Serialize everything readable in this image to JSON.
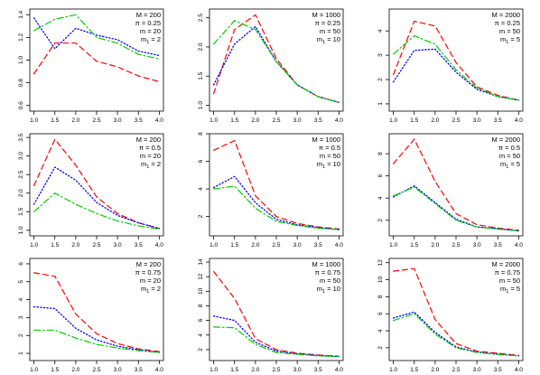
{
  "colors": {
    "red": "#ff0000",
    "blue": "#0000ff",
    "green": "#00cd00",
    "axis": "#000000"
  },
  "chart_data": [
    {
      "type": "line",
      "annotation": [
        "M = 200",
        "π = 0.25",
        "m = 20",
        "m1 = 2"
      ],
      "x": [
        1.0,
        1.5,
        2.0,
        2.5,
        3.0,
        3.5,
        4.0
      ],
      "ylim": [
        0.55,
        1.45
      ],
      "yticks": [
        0.6,
        0.8,
        1.0,
        1.2,
        1.4
      ],
      "series": [
        {
          "color": "red",
          "dash": "dashed",
          "values": [
            0.88,
            1.15,
            1.15,
            0.99,
            0.94,
            0.86,
            0.81
          ]
        },
        {
          "color": "blue",
          "dash": "dotted",
          "values": [
            1.37,
            1.1,
            1.28,
            1.22,
            1.18,
            1.08,
            1.04
          ]
        },
        {
          "color": "green",
          "dash": "dotdash",
          "values": [
            1.26,
            1.36,
            1.4,
            1.2,
            1.15,
            1.05,
            1.01
          ]
        }
      ]
    },
    {
      "type": "line",
      "annotation": [
        "M = 1000",
        "π = 0.25",
        "m = 50",
        "m1 = 10"
      ],
      "x": [
        1.0,
        1.5,
        2.0,
        2.5,
        3.0,
        3.5,
        4.0
      ],
      "ylim": [
        0.9,
        2.65
      ],
      "yticks": [
        1.0,
        1.5,
        2.0,
        2.5
      ],
      "series": [
        {
          "color": "red",
          "dash": "dashed",
          "values": [
            1.2,
            2.3,
            2.55,
            1.8,
            1.35,
            1.15,
            1.05
          ]
        },
        {
          "color": "blue",
          "dash": "dotted",
          "values": [
            1.35,
            2.05,
            2.35,
            1.75,
            1.35,
            1.15,
            1.05
          ]
        },
        {
          "color": "green",
          "dash": "dotdash",
          "values": [
            2.05,
            2.45,
            2.3,
            1.75,
            1.35,
            1.15,
            1.05
          ]
        }
      ]
    },
    {
      "type": "line",
      "annotation": [
        "M = 2000",
        "π = 0.25",
        "m = 50",
        "m1 = 5"
      ],
      "x": [
        1.0,
        1.5,
        2.0,
        2.5,
        3.0,
        3.5,
        4.0
      ],
      "ylim": [
        0.7,
        4.9
      ],
      "yticks": [
        1,
        2,
        3,
        4
      ],
      "series": [
        {
          "color": "red",
          "dash": "dashed",
          "values": [
            2.2,
            4.4,
            4.2,
            2.7,
            1.7,
            1.35,
            1.15
          ]
        },
        {
          "color": "blue",
          "dash": "dotted",
          "values": [
            1.9,
            3.2,
            3.25,
            2.3,
            1.6,
            1.3,
            1.15
          ]
        },
        {
          "color": "green",
          "dash": "dotdash",
          "values": [
            3.05,
            3.8,
            3.45,
            2.4,
            1.65,
            1.3,
            1.15
          ]
        }
      ]
    },
    {
      "type": "line",
      "annotation": [
        "M = 200",
        "π = 0.5",
        "m = 20",
        "m1 = 2"
      ],
      "x": [
        1.0,
        1.5,
        2.0,
        2.5,
        3.0,
        3.5,
        4.0
      ],
      "ylim": [
        0.85,
        3.6
      ],
      "yticks": [
        1.0,
        1.5,
        2.0,
        2.5,
        3.0,
        3.5
      ],
      "series": [
        {
          "color": "red",
          "dash": "dashed",
          "values": [
            2.2,
            3.45,
            2.75,
            1.9,
            1.45,
            1.2,
            1.05
          ]
        },
        {
          "color": "blue",
          "dash": "dotted",
          "values": [
            1.7,
            2.7,
            2.35,
            1.75,
            1.4,
            1.2,
            1.05
          ]
        },
        {
          "color": "green",
          "dash": "dotdash",
          "values": [
            1.5,
            2.0,
            1.7,
            1.45,
            1.25,
            1.12,
            1.03
          ]
        }
      ]
    },
    {
      "type": "line",
      "annotation": [
        "M = 1000",
        "π = 0.5",
        "m = 50",
        "m1 = 10"
      ],
      "x": [
        1.0,
        1.5,
        2.0,
        2.5,
        3.0,
        3.5,
        4.0
      ],
      "ylim": [
        0.6,
        8.0
      ],
      "yticks": [
        2,
        4,
        6,
        8
      ],
      "series": [
        {
          "color": "red",
          "dash": "dashed",
          "values": [
            6.8,
            7.5,
            3.5,
            2.0,
            1.5,
            1.25,
            1.1
          ]
        },
        {
          "color": "blue",
          "dash": "dotted",
          "values": [
            4.1,
            4.9,
            3.0,
            1.8,
            1.4,
            1.2,
            1.05
          ]
        },
        {
          "color": "green",
          "dash": "dotdash",
          "values": [
            4.0,
            4.2,
            2.6,
            1.65,
            1.35,
            1.15,
            1.05
          ]
        }
      ]
    },
    {
      "type": "line",
      "annotation": [
        "M = 2000",
        "π = 0.5",
        "m = 50",
        "m1 = 5"
      ],
      "x": [
        1.0,
        1.5,
        2.0,
        2.5,
        3.0,
        3.5,
        4.0
      ],
      "ylim": [
        0.6,
        9.8
      ],
      "yticks": [
        2,
        4,
        6,
        8
      ],
      "series": [
        {
          "color": "red",
          "dash": "dashed",
          "values": [
            7.1,
            9.3,
            5.5,
            2.6,
            1.6,
            1.3,
            1.1
          ]
        },
        {
          "color": "blue",
          "dash": "dotted",
          "values": [
            4.1,
            5.1,
            3.6,
            2.1,
            1.4,
            1.25,
            1.05
          ]
        },
        {
          "color": "green",
          "dash": "dotdash",
          "values": [
            4.2,
            5.0,
            3.5,
            2.0,
            1.4,
            1.2,
            1.05
          ]
        }
      ]
    },
    {
      "type": "line",
      "annotation": [
        "M = 200",
        "π = 0.75",
        "m = 20",
        "m1 = 2"
      ],
      "x": [
        1.0,
        1.5,
        2.0,
        2.5,
        3.0,
        3.5,
        4.0
      ],
      "ylim": [
        0.6,
        6.3
      ],
      "yticks": [
        1,
        2,
        3,
        4,
        5,
        6
      ],
      "series": [
        {
          "color": "red",
          "dash": "dashed",
          "values": [
            5.5,
            5.3,
            3.2,
            2.1,
            1.55,
            1.25,
            1.1
          ]
        },
        {
          "color": "blue",
          "dash": "dotted",
          "values": [
            3.6,
            3.5,
            2.4,
            1.75,
            1.4,
            1.2,
            1.05
          ]
        },
        {
          "color": "green",
          "dash": "dotdash",
          "values": [
            2.3,
            2.3,
            1.85,
            1.5,
            1.3,
            1.15,
            1.05
          ]
        }
      ]
    },
    {
      "type": "line",
      "annotation": [
        "M = 1000",
        "π = 0.75",
        "m = 50",
        "m1 = 10"
      ],
      "x": [
        1.0,
        1.5,
        2.0,
        2.5,
        3.0,
        3.5,
        4.0
      ],
      "ylim": [
        0.5,
        14.5
      ],
      "yticks": [
        2,
        4,
        6,
        8,
        10,
        12,
        14
      ],
      "series": [
        {
          "color": "red",
          "dash": "dashed",
          "values": [
            12.7,
            9.0,
            3.5,
            2.0,
            1.5,
            1.25,
            1.1
          ]
        },
        {
          "color": "blue",
          "dash": "dotted",
          "values": [
            6.6,
            6.0,
            3.0,
            1.8,
            1.4,
            1.2,
            1.05
          ]
        },
        {
          "color": "green",
          "dash": "dotdash",
          "values": [
            5.1,
            5.0,
            2.7,
            1.6,
            1.35,
            1.15,
            1.05
          ]
        }
      ]
    },
    {
      "type": "line",
      "annotation": [
        "M = 2000",
        "π = 0.75",
        "m = 50",
        "m1 = 5"
      ],
      "x": [
        1.0,
        1.5,
        2.0,
        2.5,
        3.0,
        3.5,
        4.0
      ],
      "ylim": [
        0.5,
        12.5
      ],
      "yticks": [
        2,
        4,
        6,
        8,
        10,
        12
      ],
      "series": [
        {
          "color": "red",
          "dash": "dashed",
          "values": [
            11.0,
            11.3,
            5.3,
            2.5,
            1.6,
            1.35,
            1.1
          ]
        },
        {
          "color": "blue",
          "dash": "dotted",
          "values": [
            5.5,
            6.2,
            3.8,
            2.1,
            1.5,
            1.25,
            1.05
          ]
        },
        {
          "color": "green",
          "dash": "dotdash",
          "values": [
            5.2,
            6.0,
            3.6,
            2.0,
            1.45,
            1.2,
            1.05
          ]
        }
      ]
    }
  ]
}
